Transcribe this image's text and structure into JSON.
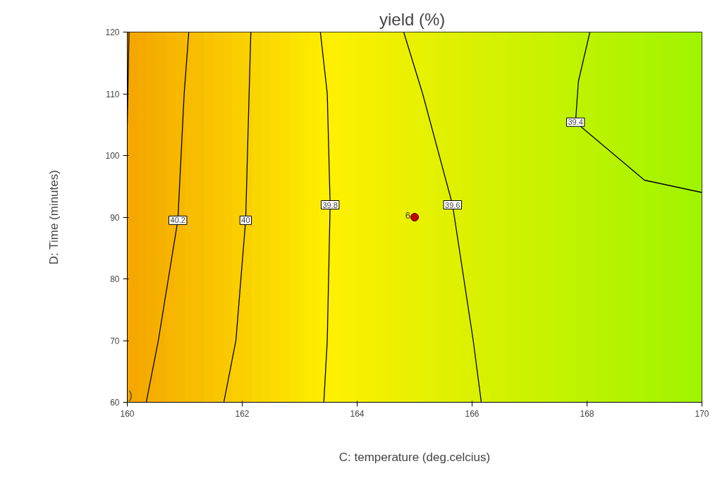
{
  "chart_data": {
    "type": "line",
    "title": "yield  (%)",
    "xlabel": "C: temperature (deg.celcius)",
    "ylabel": "D: Time (minutes)",
    "xlim": [
      160,
      170
    ],
    "ylim": [
      60,
      120
    ],
    "xticks": [
      160,
      162,
      164,
      166,
      168,
      170
    ],
    "yticks": [
      60,
      70,
      80,
      90,
      100,
      110,
      120
    ],
    "grid": false,
    "marker": "none",
    "line_style": "solid",
    "series": [
      {
        "name": "40.2",
        "color": "#000000",
        "x": [
          160.33,
          160.54,
          160.88,
          160.99,
          161.07
        ],
        "values": [
          60,
          70,
          89.5,
          110,
          120
        ]
      },
      {
        "name": "40",
        "color": "#000000",
        "x": [
          161.68,
          161.89,
          162.06,
          162.12,
          162.15
        ],
        "values": [
          60,
          70,
          89.5,
          110,
          120
        ]
      },
      {
        "name": "39.8",
        "color": "#000000",
        "x": [
          163.42,
          163.48,
          163.53,
          163.48,
          163.36
        ],
        "values": [
          60,
          70,
          92,
          110,
          120
        ]
      },
      {
        "name": "39.6",
        "color": "#000000",
        "x": [
          166.16,
          166.02,
          165.66,
          165.14,
          164.81
        ],
        "values": [
          60,
          70,
          92,
          110,
          120
        ]
      },
      {
        "name": "39.4",
        "color": "#000000",
        "x": [
          168.05,
          167.85,
          167.8,
          169,
          170
        ],
        "values": [
          120,
          112,
          105.4,
          96,
          94
        ]
      },
      {
        "color": "#000000",
        "x": [
          160.03,
          160.0
        ],
        "values": [
          120,
          105
        ]
      },
      {
        "type": "scatter",
        "name": "6",
        "color": "#c00000",
        "marker": "circle",
        "x": [
          165
        ],
        "values": [
          90
        ]
      }
    ],
    "annotations": [
      ")"
    ]
  }
}
